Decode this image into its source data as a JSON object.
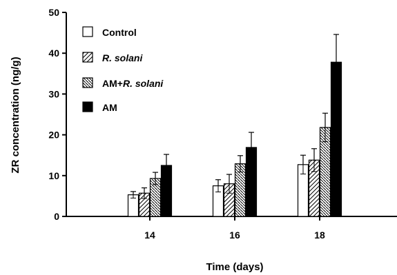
{
  "chart_data": {
    "type": "bar",
    "xlabel": "Time (days)",
    "ylabel": "ZR concentration (ng/g)",
    "ylim": [
      0,
      50
    ],
    "yticks": [
      0,
      10,
      20,
      30,
      40,
      50
    ],
    "categories": [
      "14",
      "16",
      "18"
    ],
    "grid": false,
    "legend_position": "top-left",
    "series": [
      {
        "name": "Control",
        "name_parts": [
          {
            "text": "Control",
            "italic": false
          }
        ],
        "pattern": "white",
        "values": [
          5.3,
          7.5,
          12.7
        ],
        "errors": [
          0.8,
          1.5,
          2.3
        ]
      },
      {
        "name": "R. solani",
        "name_parts": [
          {
            "text": "R. solani",
            "italic": true
          }
        ],
        "pattern": "hatch",
        "values": [
          5.7,
          8.0,
          13.8
        ],
        "errors": [
          1.3,
          2.3,
          2.8
        ]
      },
      {
        "name": "AM+R. solani",
        "name_parts": [
          {
            "text": "AM+",
            "italic": false
          },
          {
            "text": "R. solani",
            "italic": true
          }
        ],
        "pattern": "dense-hatch",
        "values": [
          9.3,
          12.9,
          21.8
        ],
        "errors": [
          1.5,
          2.0,
          3.5
        ]
      },
      {
        "name": "AM",
        "name_parts": [
          {
            "text": "AM",
            "italic": false
          }
        ],
        "pattern": "black",
        "values": [
          12.5,
          16.9,
          37.8
        ],
        "errors": [
          2.7,
          3.7,
          6.8
        ]
      }
    ]
  }
}
